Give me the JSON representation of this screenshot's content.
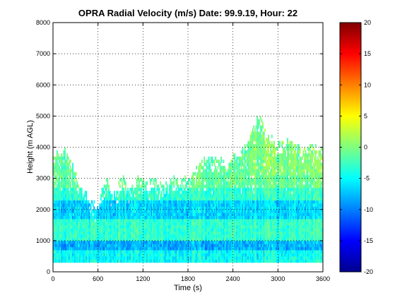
{
  "chart_data": {
    "type": "heatmap",
    "title": "OPRA Radial Velocity (m/s)  Date: 99.9.19, Hour: 22",
    "xlabel": "Time (s)",
    "ylabel": "Height (m AGL)",
    "xlim": [
      0,
      3600
    ],
    "ylim": [
      0,
      8000
    ],
    "x_ticks": [
      "0",
      "600",
      "1200",
      "1800",
      "2400",
      "3000",
      "3600"
    ],
    "y_ticks": [
      "0",
      "1000",
      "2000",
      "3000",
      "4000",
      "5000",
      "6000",
      "7000",
      "8000"
    ],
    "grid": true,
    "colormap": "jet",
    "clim": [
      -20,
      20
    ],
    "colorbar_ticks": [
      "20",
      "15",
      "10",
      "5",
      "0",
      "-5",
      "-10",
      "-15",
      "-20"
    ],
    "data_base_height": 300,
    "echo_top_profile": {
      "time": [
        0,
        60,
        120,
        180,
        240,
        300,
        360,
        420,
        480,
        540,
        600,
        660,
        720,
        780,
        840,
        900,
        960,
        1020,
        1080,
        1140,
        1200,
        1260,
        1320,
        1380,
        1440,
        1500,
        1560,
        1620,
        1680,
        1740,
        1800,
        1860,
        1920,
        1980,
        2040,
        2100,
        2160,
        2220,
        2280,
        2340,
        2400,
        2460,
        2520,
        2580,
        2640,
        2700,
        2760,
        2820,
        2880,
        2940,
        3000,
        3060,
        3120,
        3180,
        3240,
        3300,
        3360,
        3420,
        3480,
        3540,
        3600
      ],
      "top_height": [
        3700,
        3700,
        3800,
        3850,
        3400,
        3100,
        2700,
        2500,
        2300,
        2100,
        2000,
        2700,
        3000,
        2500,
        2400,
        3000,
        2900,
        2600,
        2700,
        3000,
        3000,
        2700,
        2900,
        2900,
        2700,
        2700,
        3000,
        3000,
        2800,
        3000,
        3000,
        3000,
        3400,
        3500,
        3600,
        3500,
        3600,
        3550,
        3500,
        3500,
        3600,
        3700,
        3800,
        4000,
        4400,
        4900,
        4900,
        4600,
        4300,
        4200,
        4100,
        4050,
        4100,
        4200,
        4000,
        3900,
        3900,
        4100,
        4000,
        3900,
        4000
      ]
    },
    "notes": "Radial velocities mostly between about -7 and 0 m/s; strongest negative values (about -10 to -12 m/s) near 700-900 m AGL and 1700-2300 m AGL."
  }
}
